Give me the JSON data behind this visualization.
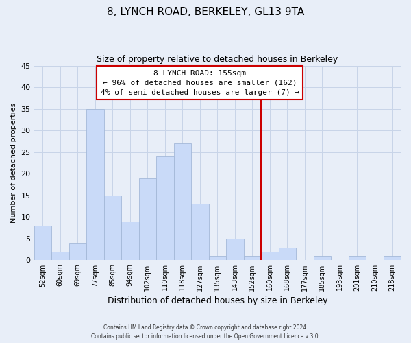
{
  "title": "8, LYNCH ROAD, BERKELEY, GL13 9TA",
  "subtitle": "Size of property relative to detached houses in Berkeley",
  "xlabel": "Distribution of detached houses by size in Berkeley",
  "ylabel": "Number of detached properties",
  "bin_labels": [
    "52sqm",
    "60sqm",
    "69sqm",
    "77sqm",
    "85sqm",
    "94sqm",
    "102sqm",
    "110sqm",
    "118sqm",
    "127sqm",
    "135sqm",
    "143sqm",
    "152sqm",
    "160sqm",
    "168sqm",
    "177sqm",
    "185sqm",
    "193sqm",
    "201sqm",
    "210sqm",
    "218sqm"
  ],
  "bar_values": [
    8,
    2,
    4,
    35,
    15,
    9,
    19,
    24,
    27,
    13,
    1,
    5,
    1,
    2,
    3,
    0,
    1,
    0,
    1,
    0,
    1
  ],
  "bar_color": "#c9daf8",
  "bar_edge_color": "#a4b8d8",
  "vline_bin": 12,
  "vline_color": "#cc0000",
  "annotation_title": "8 LYNCH ROAD: 155sqm",
  "annotation_line1": "← 96% of detached houses are smaller (162)",
  "annotation_line2": "4% of semi-detached houses are larger (7) →",
  "annotation_box_color": "#ffffff",
  "annotation_border_color": "#cc0000",
  "ylim": [
    0,
    45
  ],
  "yticks": [
    0,
    5,
    10,
    15,
    20,
    25,
    30,
    35,
    40,
    45
  ],
  "grid_color": "#c8d4e8",
  "background_color": "#e8eef8",
  "footer_line1": "Contains HM Land Registry data © Crown copyright and database right 2024.",
  "footer_line2": "Contains public sector information licensed under the Open Government Licence v 3.0."
}
